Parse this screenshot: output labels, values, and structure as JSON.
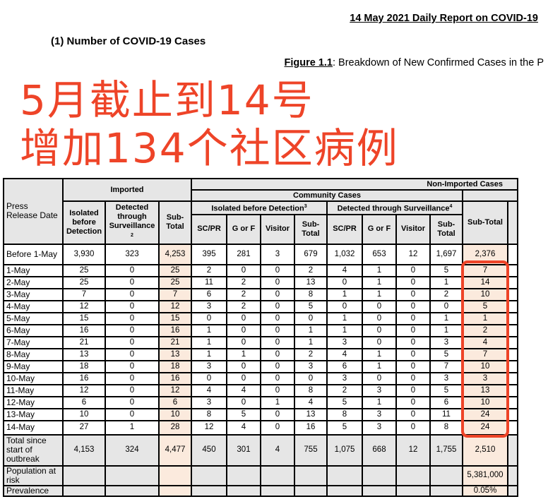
{
  "header": {
    "title": "14 May 2021 Daily Report on COVID-19",
    "section": "(1)  Number of COVID-19 Cases",
    "figure_label": "Figure 1.1",
    "figure_text": ": Breakdown of New Confirmed Cases in the P"
  },
  "table": {
    "col_date": "Press Release Date",
    "imported": "Imported",
    "non_imported": "Non-Imported Cases",
    "community": "Community Cases",
    "isolated_group": "Isolated before Detection",
    "isolated_sup": "3",
    "surv_group": "Detected through Surveillance",
    "surv_sup": "4",
    "imp_cols": [
      "Isolated before Detection",
      "Detected through Surveillance",
      "Sub-Total"
    ],
    "imp_sup": "2",
    "comm_cols": [
      "SC/PR",
      "G or F",
      "Visitor",
      "Sub-Total",
      "SC/PR",
      "G or F",
      "Visitor",
      "Sub-Total"
    ],
    "subtotal": "Sub-Total",
    "rows": [
      [
        "Before 1-May",
        "3,930",
        "323",
        "4,253",
        "395",
        "281",
        "3",
        "679",
        "1,032",
        "653",
        "12",
        "1,697",
        "2,376"
      ],
      [
        "1-May",
        "25",
        "0",
        "25",
        "2",
        "0",
        "0",
        "2",
        "4",
        "1",
        "0",
        "5",
        "7"
      ],
      [
        "2-May",
        "25",
        "0",
        "25",
        "11",
        "2",
        "0",
        "13",
        "0",
        "1",
        "0",
        "1",
        "14"
      ],
      [
        "3-May",
        "7",
        "0",
        "7",
        "6",
        "2",
        "0",
        "8",
        "1",
        "1",
        "0",
        "2",
        "10"
      ],
      [
        "4-May",
        "12",
        "0",
        "12",
        "3",
        "2",
        "0",
        "5",
        "0",
        "0",
        "0",
        "0",
        "5"
      ],
      [
        "5-May",
        "15",
        "0",
        "15",
        "0",
        "0",
        "0",
        "0",
        "1",
        "0",
        "0",
        "1",
        "1"
      ],
      [
        "6-May",
        "16",
        "0",
        "16",
        "1",
        "0",
        "0",
        "1",
        "1",
        "0",
        "0",
        "1",
        "2"
      ],
      [
        "7-May",
        "21",
        "0",
        "21",
        "1",
        "0",
        "0",
        "1",
        "3",
        "0",
        "0",
        "3",
        "4"
      ],
      [
        "8-May",
        "13",
        "0",
        "13",
        "1",
        "1",
        "0",
        "2",
        "4",
        "1",
        "0",
        "5",
        "7"
      ],
      [
        "9-May",
        "18",
        "0",
        "18",
        "3",
        "0",
        "0",
        "3",
        "6",
        "1",
        "0",
        "7",
        "10"
      ],
      [
        "10-May",
        "16",
        "0",
        "16",
        "0",
        "0",
        "0",
        "0",
        "3",
        "0",
        "0",
        "3",
        "3"
      ],
      [
        "11-May",
        "12",
        "0",
        "12",
        "4",
        "4",
        "0",
        "8",
        "2",
        "3",
        "0",
        "5",
        "13"
      ],
      [
        "12-May",
        "6",
        "0",
        "6",
        "3",
        "0",
        "1",
        "4",
        "5",
        "1",
        "0",
        "6",
        "10"
      ],
      [
        "13-May",
        "10",
        "0",
        "10",
        "8",
        "5",
        "0",
        "13",
        "8",
        "3",
        "0",
        "11",
        "24"
      ],
      [
        "14-May",
        "27",
        "1",
        "28",
        "12",
        "4",
        "0",
        "16",
        "5",
        "3",
        "0",
        "8",
        "24"
      ],
      [
        "Total since start of outbreak",
        "4,153",
        "324",
        "4,477",
        "450",
        "301",
        "4",
        "755",
        "1,075",
        "668",
        "12",
        "1,755",
        "2,510"
      ],
      [
        "Population at risk",
        "",
        "",
        "",
        "",
        "",
        "",
        "",
        "",
        "",
        "",
        "",
        "5,381,000"
      ],
      [
        "Prevalence",
        "",
        "",
        "",
        "",
        "",
        "",
        "",
        "",
        "",
        "",
        "",
        "0.05%"
      ]
    ]
  },
  "overlay": {
    "line1": "5月截止到14号",
    "line2": "增加134个社区病例",
    "color": "#ee4428"
  }
}
